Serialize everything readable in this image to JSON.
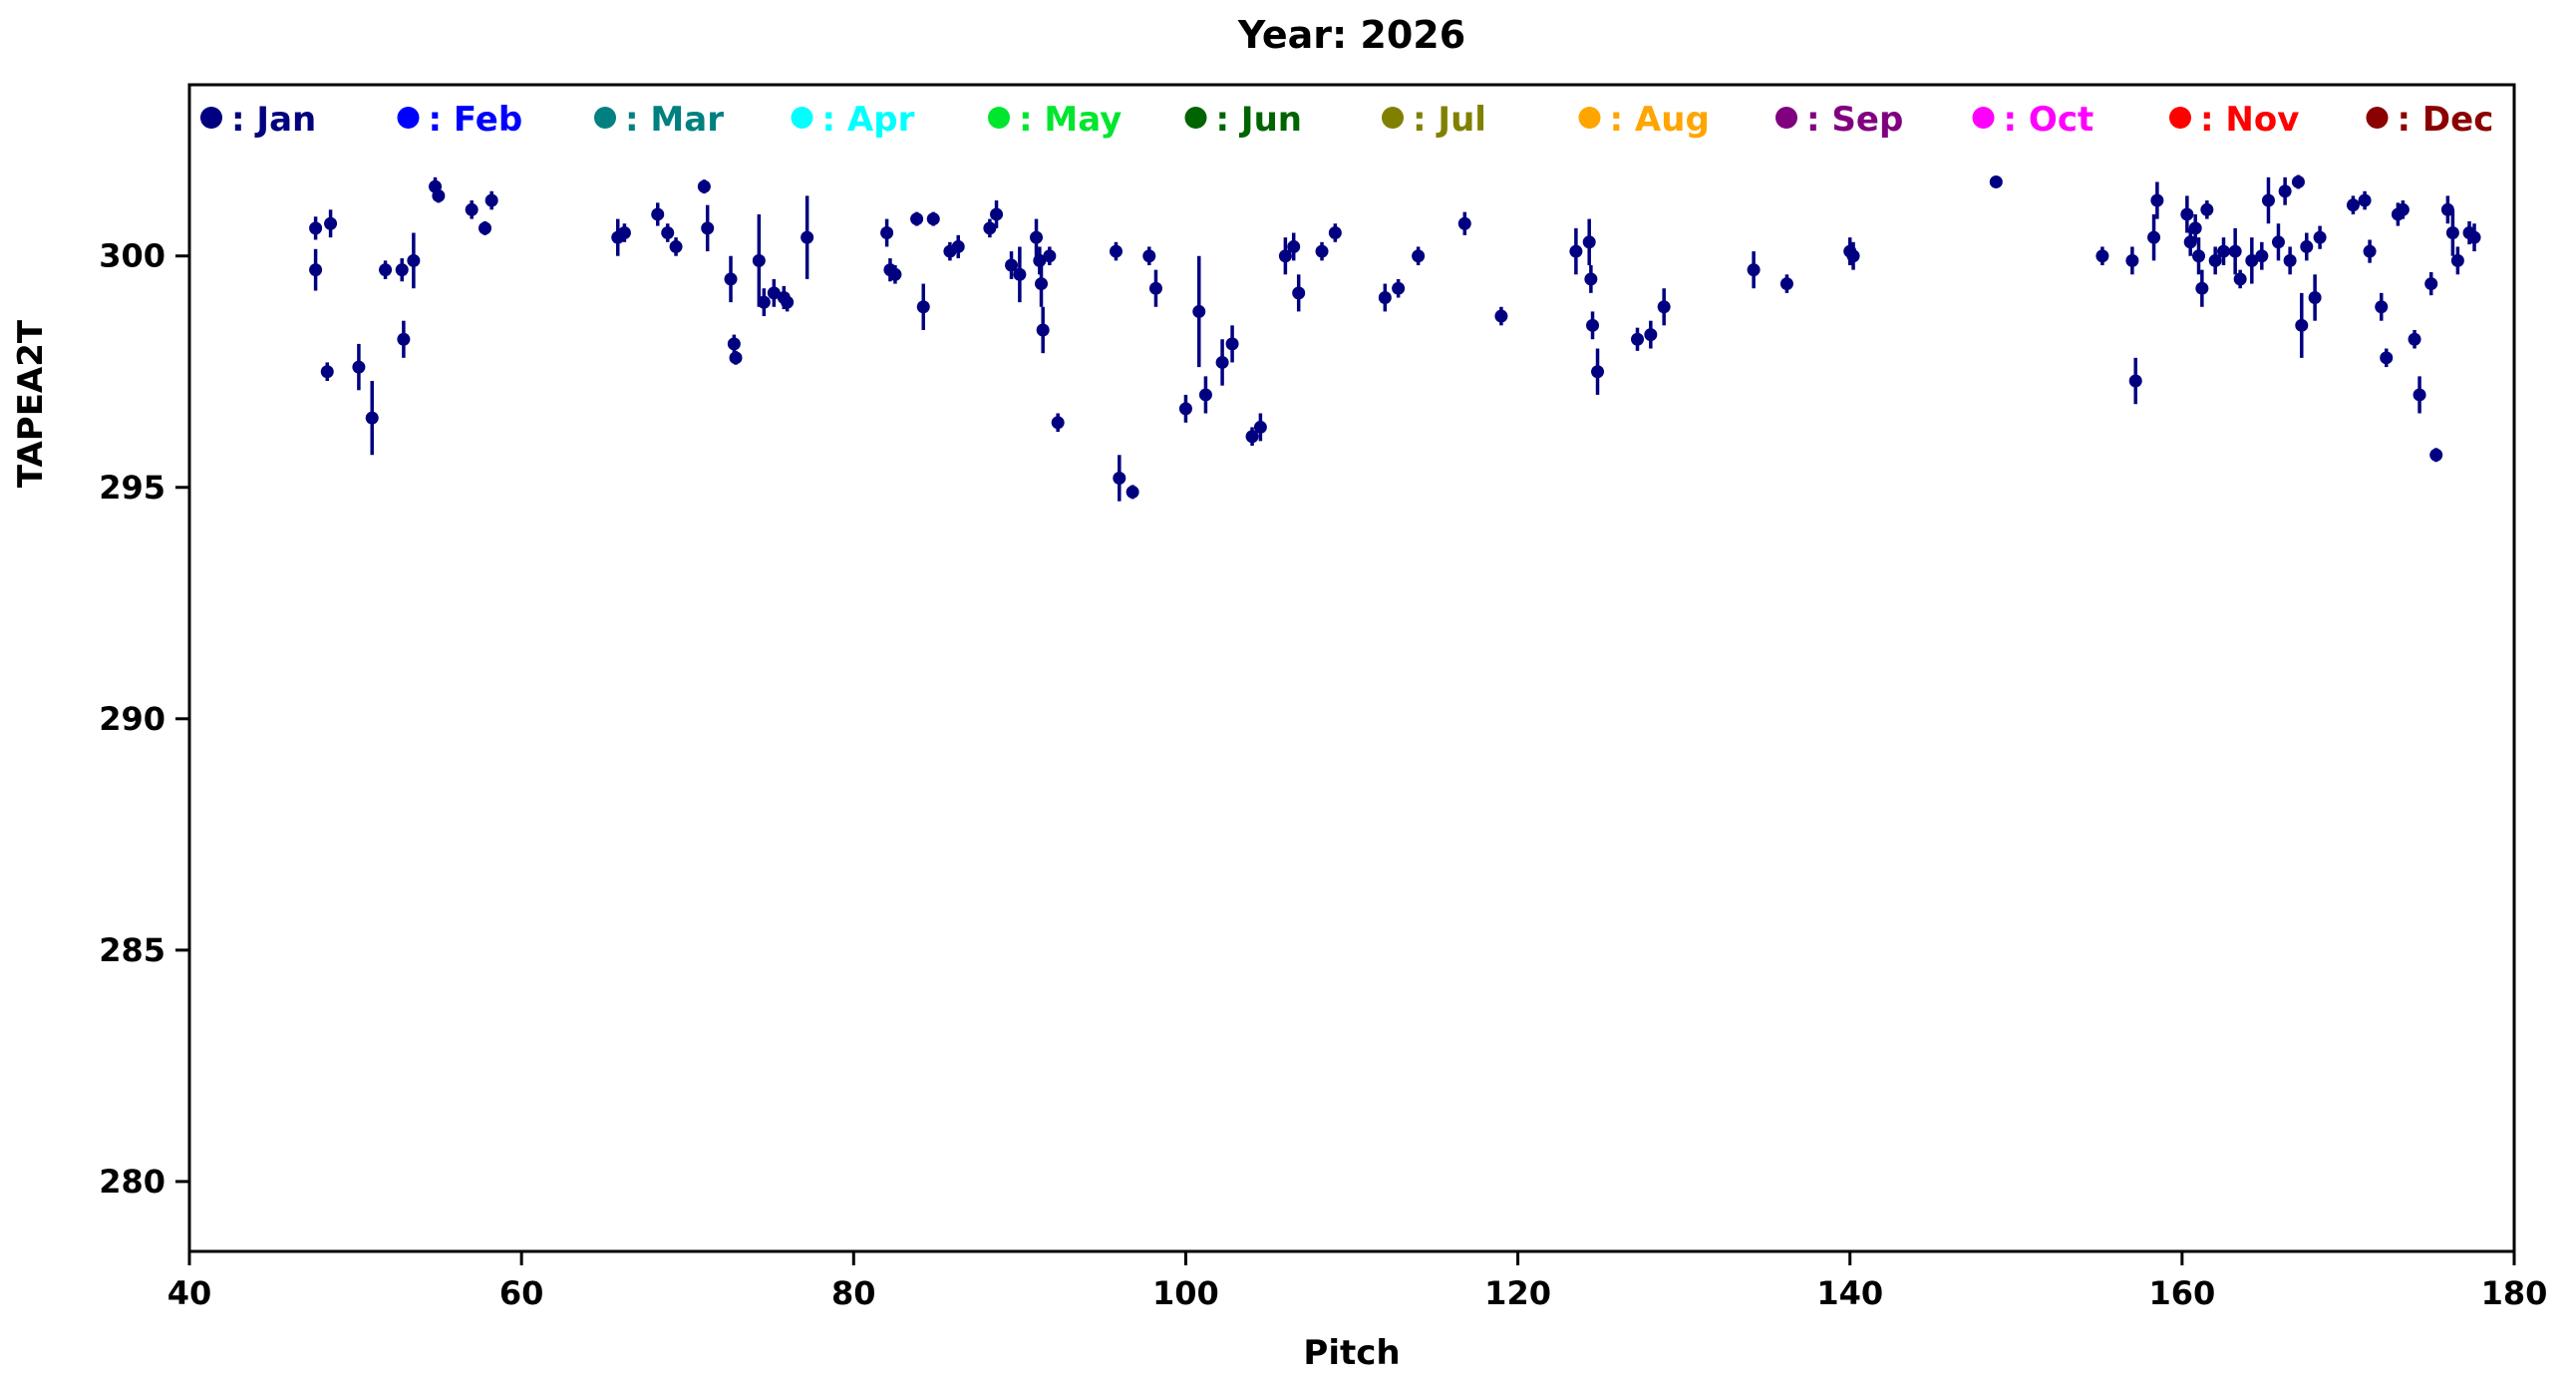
{
  "chart_data": {
    "type": "scatter",
    "title": "Year: 2026",
    "xlabel": "Pitch",
    "ylabel": "TAPEA2T",
    "xlim": [
      40,
      180
    ],
    "ylim": [
      278.49,
      303.7
    ],
    "xticks": [
      40,
      60,
      80,
      100,
      120,
      140,
      160,
      180
    ],
    "yticks": [
      280,
      285,
      290,
      295,
      300
    ],
    "grid": false,
    "legend_position": "top-inside-row",
    "legend": [
      {
        "label": "Jan",
        "color": "#000080"
      },
      {
        "label": "Feb",
        "color": "#0000FF"
      },
      {
        "label": "Mar",
        "color": "#008080"
      },
      {
        "label": "Apr",
        "color": "#00FFFF"
      },
      {
        "label": "May",
        "color": "#00E62E"
      },
      {
        "label": "Jun",
        "color": "#006400"
      },
      {
        "label": "Jul",
        "color": "#808000"
      },
      {
        "label": "Aug",
        "color": "#FFA500"
      },
      {
        "label": "Sep",
        "color": "#800080"
      },
      {
        "label": "Oct",
        "color": "#FF00FF"
      },
      {
        "label": "Nov",
        "color": "#FF0000"
      },
      {
        "label": "Dec",
        "color": "#8B0000"
      }
    ],
    "series": [
      {
        "name": "Jan",
        "color": "#000080",
        "marker": "circle",
        "error_bars": true,
        "points": [
          [
            47.6,
            300.6,
            0.25
          ],
          [
            47.6,
            299.7,
            0.45
          ],
          [
            48.5,
            300.7,
            0.3
          ],
          [
            48.3,
            297.5,
            0.2
          ],
          [
            50.2,
            297.6,
            0.5
          ],
          [
            51.0,
            296.5,
            0.8
          ],
          [
            51.8,
            299.7,
            0.2
          ],
          [
            52.8,
            299.7,
            0.25
          ],
          [
            52.9,
            298.2,
            0.4
          ],
          [
            53.5,
            299.9,
            0.6
          ],
          [
            54.8,
            301.5,
            0.2
          ],
          [
            55.0,
            301.3,
            0.15
          ],
          [
            57.0,
            301.0,
            0.2
          ],
          [
            57.8,
            300.6,
            0.15
          ],
          [
            58.2,
            301.2,
            0.2
          ],
          [
            65.8,
            300.4,
            0.4
          ],
          [
            66.2,
            300.5,
            0.2
          ],
          [
            68.2,
            300.9,
            0.25
          ],
          [
            68.8,
            300.5,
            0.2
          ],
          [
            69.3,
            300.2,
            0.2
          ],
          [
            71.0,
            301.5,
            0.15
          ],
          [
            71.2,
            300.6,
            0.5
          ],
          [
            72.6,
            299.5,
            0.5
          ],
          [
            72.8,
            298.1,
            0.2
          ],
          [
            72.9,
            297.8,
            0.15
          ],
          [
            74.3,
            299.9,
            1.0
          ],
          [
            74.6,
            299.0,
            0.3
          ],
          [
            75.2,
            299.2,
            0.3
          ],
          [
            75.8,
            299.1,
            0.25
          ],
          [
            76.0,
            299.0,
            0.2
          ],
          [
            77.2,
            300.4,
            0.9
          ],
          [
            82.0,
            300.5,
            0.3
          ],
          [
            82.2,
            299.7,
            0.25
          ],
          [
            82.5,
            299.6,
            0.2
          ],
          [
            83.8,
            300.8,
            0.15
          ],
          [
            84.2,
            298.9,
            0.5
          ],
          [
            84.8,
            300.8,
            0.15
          ],
          [
            85.8,
            300.1,
            0.2
          ],
          [
            86.3,
            300.2,
            0.25
          ],
          [
            88.2,
            300.6,
            0.2
          ],
          [
            88.6,
            300.9,
            0.3
          ],
          [
            89.5,
            299.8,
            0.3
          ],
          [
            90.0,
            299.6,
            0.6
          ],
          [
            91.0,
            300.4,
            0.4
          ],
          [
            91.2,
            299.9,
            0.3
          ],
          [
            91.3,
            299.4,
            0.5
          ],
          [
            91.4,
            298.4,
            0.5
          ],
          [
            91.8,
            300.0,
            0.2
          ],
          [
            92.3,
            296.4,
            0.2
          ],
          [
            95.8,
            300.1,
            0.2
          ],
          [
            96.0,
            295.2,
            0.5
          ],
          [
            96.8,
            294.9,
            0.15
          ],
          [
            97.8,
            300.0,
            0.2
          ],
          [
            98.2,
            299.3,
            0.4
          ],
          [
            100.0,
            296.7,
            0.3
          ],
          [
            100.8,
            298.8,
            1.2
          ],
          [
            101.2,
            297.0,
            0.4
          ],
          [
            102.2,
            297.7,
            0.5
          ],
          [
            102.8,
            298.1,
            0.4
          ],
          [
            104.0,
            296.1,
            0.2
          ],
          [
            104.5,
            296.3,
            0.3
          ],
          [
            106.0,
            300.0,
            0.4
          ],
          [
            106.5,
            300.2,
            0.3
          ],
          [
            106.8,
            299.2,
            0.4
          ],
          [
            108.2,
            300.1,
            0.2
          ],
          [
            109.0,
            300.5,
            0.2
          ],
          [
            112.0,
            299.1,
            0.3
          ],
          [
            112.8,
            299.3,
            0.2
          ],
          [
            114.0,
            300.0,
            0.2
          ],
          [
            116.8,
            300.7,
            0.25
          ],
          [
            119.0,
            298.7,
            0.2
          ],
          [
            123.5,
            300.1,
            0.5
          ],
          [
            124.3,
            300.3,
            0.5
          ],
          [
            124.4,
            299.5,
            0.3
          ],
          [
            124.5,
            298.5,
            0.3
          ],
          [
            124.8,
            297.5,
            0.5
          ],
          [
            127.2,
            298.2,
            0.25
          ],
          [
            128.0,
            298.3,
            0.3
          ],
          [
            128.8,
            298.9,
            0.4
          ],
          [
            134.2,
            299.7,
            0.4
          ],
          [
            136.2,
            299.4,
            0.2
          ],
          [
            140.0,
            300.1,
            0.3
          ],
          [
            140.2,
            300.0,
            0.3
          ],
          [
            148.8,
            301.6,
            0.1
          ],
          [
            155.2,
            300.0,
            0.2
          ],
          [
            157.0,
            299.9,
            0.3
          ],
          [
            157.2,
            297.3,
            0.5
          ],
          [
            158.3,
            300.4,
            0.5
          ],
          [
            158.5,
            301.2,
            0.4
          ],
          [
            160.3,
            300.9,
            0.4
          ],
          [
            160.5,
            300.3,
            0.3
          ],
          [
            160.8,
            300.6,
            0.3
          ],
          [
            161.0,
            300.0,
            0.4
          ],
          [
            161.2,
            299.3,
            0.4
          ],
          [
            161.5,
            301.0,
            0.2
          ],
          [
            162.0,
            299.9,
            0.3
          ],
          [
            162.5,
            300.1,
            0.3
          ],
          [
            163.2,
            300.1,
            0.5
          ],
          [
            163.5,
            299.5,
            0.2
          ],
          [
            164.2,
            299.9,
            0.5
          ],
          [
            164.8,
            300.0,
            0.3
          ],
          [
            165.2,
            301.2,
            0.5
          ],
          [
            165.8,
            300.3,
            0.4
          ],
          [
            166.2,
            301.4,
            0.3
          ],
          [
            166.5,
            299.9,
            0.3
          ],
          [
            167.0,
            301.6,
            0.15
          ],
          [
            167.2,
            298.5,
            0.7
          ],
          [
            167.5,
            300.2,
            0.3
          ],
          [
            168.0,
            299.1,
            0.5
          ],
          [
            168.3,
            300.4,
            0.25
          ],
          [
            170.3,
            301.1,
            0.2
          ],
          [
            171.0,
            301.2,
            0.2
          ],
          [
            171.3,
            300.1,
            0.25
          ],
          [
            172.0,
            298.9,
            0.3
          ],
          [
            172.3,
            297.8,
            0.2
          ],
          [
            173.0,
            300.9,
            0.25
          ],
          [
            173.3,
            301.0,
            0.2
          ],
          [
            174.0,
            298.2,
            0.2
          ],
          [
            174.3,
            297.0,
            0.4
          ],
          [
            175.0,
            299.4,
            0.25
          ],
          [
            175.3,
            295.7,
            0.15
          ],
          [
            176.0,
            301.0,
            0.3
          ],
          [
            176.3,
            300.5,
            0.5
          ],
          [
            176.6,
            299.9,
            0.3
          ],
          [
            177.3,
            300.5,
            0.25
          ],
          [
            177.6,
            300.4,
            0.3
          ]
        ]
      }
    ]
  }
}
